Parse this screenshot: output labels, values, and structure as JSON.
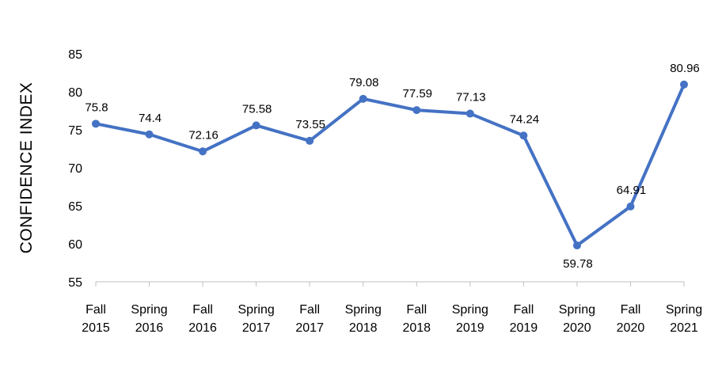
{
  "chart_data": {
    "type": "line",
    "title": "",
    "xlabel": "",
    "ylabel": "CONFIDENCE INDEX",
    "ylim": [
      55,
      85
    ],
    "yticks": [
      55,
      60,
      65,
      70,
      75,
      80,
      85
    ],
    "grid": false,
    "legend": "none",
    "categories": [
      [
        "Fall",
        "2015"
      ],
      [
        "Spring",
        "2016"
      ],
      [
        "Fall",
        "2016"
      ],
      [
        "Spring",
        "2017"
      ],
      [
        "Fall",
        "2017"
      ],
      [
        "Spring",
        "2018"
      ],
      [
        "Fall",
        "2018"
      ],
      [
        "Spring",
        "2019"
      ],
      [
        "Fall",
        "2019"
      ],
      [
        "Spring",
        "2020"
      ],
      [
        "Fall",
        "2020"
      ],
      [
        "Spring",
        "2021"
      ]
    ],
    "series": [
      {
        "values": [
          75.8,
          74.4,
          72.16,
          75.58,
          73.55,
          79.08,
          77.59,
          77.13,
          74.24,
          59.78,
          64.91,
          80.96
        ],
        "labels": [
          "75.8",
          "74.4",
          "72.16",
          "75.58",
          "73.55",
          "79.08",
          "77.59",
          "77.13",
          "74.24",
          "59.78",
          "64.91",
          "80.96"
        ],
        "label_position": [
          "above",
          "above",
          "above",
          "above",
          "above",
          "above",
          "above",
          "above",
          "above",
          "below",
          "above",
          "above"
        ],
        "color": "#4472C4"
      }
    ],
    "axis_color": "#BFBFBF"
  }
}
